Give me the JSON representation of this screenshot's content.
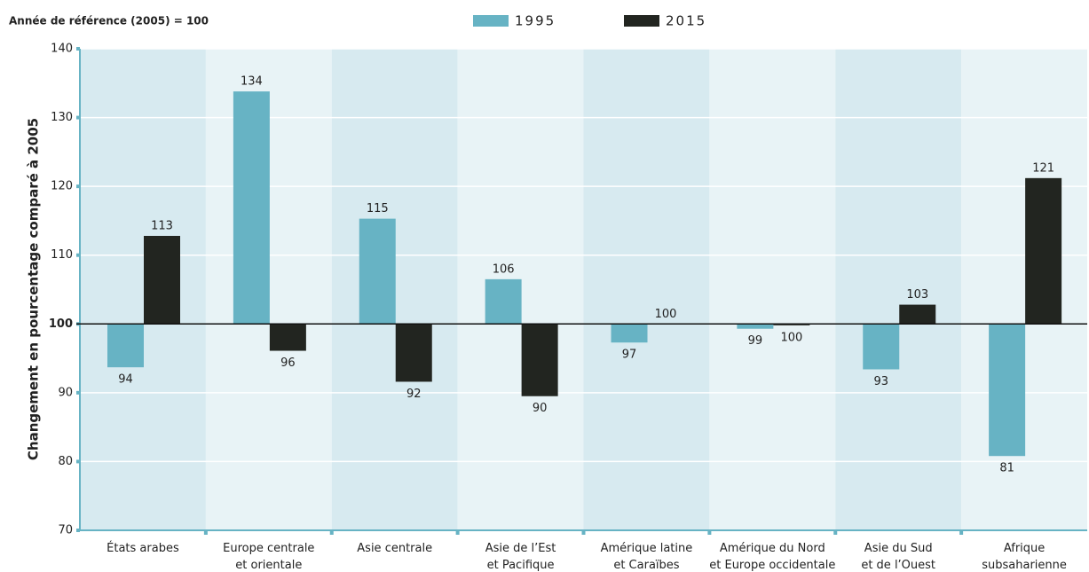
{
  "chart_data": {
    "type": "bar",
    "subtitle": "Année de référence (2005) = 100",
    "y_label": "Changement en pourcentage comparé à 2005",
    "categories": [
      "États arabes",
      "Europe centrale\net orientale",
      "Asie centrale",
      "Asie de l’Est\net Pacifique",
      "Amérique latine\net Caraïbes",
      "Amérique du Nord\net Europe occidentale",
      "Asie du Sud\net de l’Ouest",
      "Afrique\nsubsaharienne"
    ],
    "baseline": 100,
    "series": [
      {
        "name": "1995",
        "color": "#67b3c4",
        "values": [
          93.7,
          133.8,
          115.3,
          106.5,
          97.3,
          99.3,
          93.4,
          80.8
        ],
        "value_labels": [
          "94",
          "134",
          "115",
          "106",
          "97",
          "99",
          "93",
          "81"
        ]
      },
      {
        "name": "2015",
        "color": "#222520",
        "values": [
          112.8,
          96.1,
          91.6,
          89.5,
          100,
          99.8,
          102.8,
          121.2
        ],
        "value_labels": [
          "113",
          "96",
          "92",
          "90",
          "100",
          "100",
          "103",
          "121"
        ]
      }
    ],
    "ylim": [
      70,
      140
    ],
    "yticks": [
      70,
      80,
      90,
      100,
      110,
      120,
      130,
      140
    ],
    "grid": true
  }
}
